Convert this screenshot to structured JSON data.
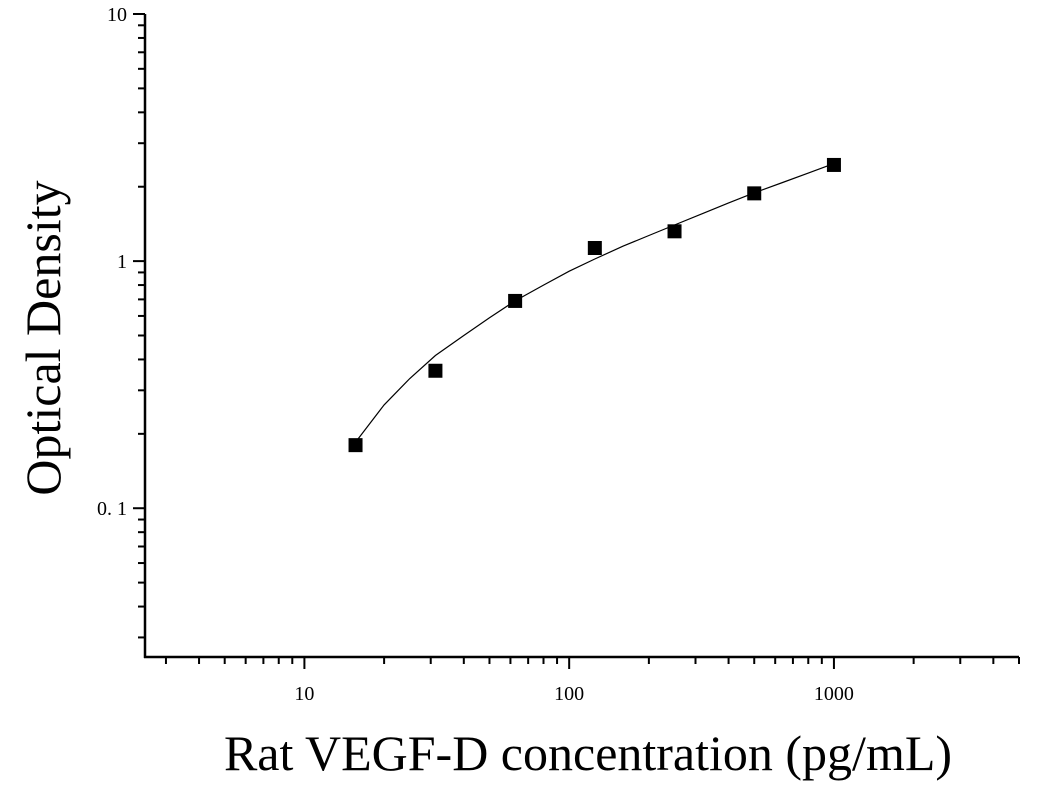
{
  "chart_data": {
    "type": "scatter",
    "title": "",
    "xlabel": "Rat VEGF-D concentration (pg/mL)",
    "ylabel": "Optical Density",
    "xscale": "log",
    "yscale": "log",
    "xlim": [
      2.5,
      5000
    ],
    "ylim": [
      0.025,
      10
    ],
    "x_ticks": [
      {
        "value": 10,
        "label": "10"
      },
      {
        "value": 100,
        "label": "100"
      },
      {
        "value": 1000,
        "label": "1000"
      }
    ],
    "y_ticks": [
      {
        "value": 0.1,
        "label": "0. 1"
      },
      {
        "value": 1,
        "label": "1"
      },
      {
        "value": 10,
        "label": "10"
      }
    ],
    "grid": false,
    "legend": "none",
    "series": [
      {
        "marker": "square",
        "color": "#000000",
        "x": [
          15.6,
          31.25,
          62.5,
          125,
          250,
          500,
          1000
        ],
        "y": [
          0.18,
          0.36,
          0.69,
          1.13,
          1.32,
          1.88,
          2.45
        ]
      }
    ],
    "fit_curve": {
      "type": "line",
      "color": "#000000",
      "x": [
        15.6,
        20,
        25,
        31.25,
        40,
        50,
        62.5,
        80,
        100,
        125,
        160,
        200,
        250,
        320,
        400,
        500,
        640,
        800,
        1000
      ],
      "y": [
        0.185,
        0.262,
        0.335,
        0.415,
        0.5,
        0.59,
        0.69,
        0.8,
        0.91,
        1.02,
        1.15,
        1.27,
        1.4,
        1.56,
        1.72,
        1.89,
        2.08,
        2.27,
        2.48
      ]
    }
  }
}
